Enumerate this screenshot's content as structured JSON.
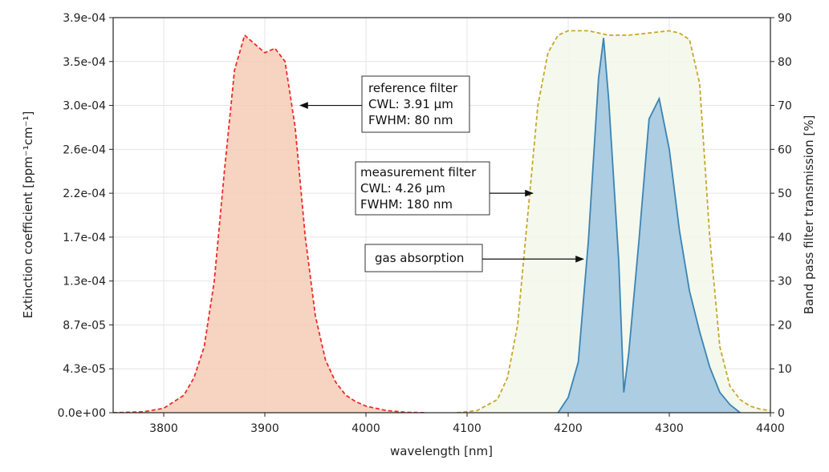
{
  "chart_data": {
    "type": "line",
    "xlabel": "wavelength [nm]",
    "ylabel_left": "Extinction coefficient [ppm⁻¹cm⁻¹]",
    "ylabel_right": "Band pass filter transmission [%]",
    "xlim": [
      3750,
      4400
    ],
    "xticks": [
      3800,
      3900,
      4000,
      4100,
      4200,
      4300,
      4400
    ],
    "ylim_left": [
      0,
      0.00039
    ],
    "yticks_left": [
      "0.0e+00",
      "4.3e-05",
      "8.7e-05",
      "1.3e-04",
      "1.7e-04",
      "2.2e-04",
      "2.6e-04",
      "3.0e-04",
      "3.5e-04",
      "3.9e-04"
    ],
    "ylim_right": [
      0,
      90
    ],
    "yticks_right": [
      0,
      10,
      20,
      30,
      40,
      50,
      60,
      70,
      80,
      90
    ],
    "grid": true,
    "series": [
      {
        "axis": "right",
        "color": "#ee2b2b",
        "fill": "#f5cdb6",
        "style": "dashed",
        "x": [
          3750,
          3780,
          3800,
          3820,
          3830,
          3840,
          3850,
          3860,
          3870,
          3880,
          3890,
          3900,
          3910,
          3920,
          3930,
          3940,
          3950,
          3960,
          3970,
          3980,
          3990,
          4000,
          4020,
          4040,
          4060
        ],
        "y": [
          0,
          0.2,
          1,
          4,
          8,
          15,
          30,
          55,
          78,
          86,
          84,
          82,
          83,
          80,
          65,
          40,
          22,
          12,
          7,
          4,
          2.5,
          1.5,
          0.5,
          0.1,
          0
        ]
      },
      {
        "axis": "right",
        "color": "#c8a82a",
        "fill": "#f2f7ea",
        "style": "dashed",
        "x": [
          4090,
          4110,
          4130,
          4140,
          4150,
          4160,
          4170,
          4180,
          4190,
          4200,
          4220,
          4240,
          4260,
          4280,
          4300,
          4310,
          4320,
          4330,
          4340,
          4350,
          4360,
          4370,
          4380,
          4390,
          4400
        ],
        "y": [
          0,
          0.5,
          3,
          8,
          20,
          45,
          70,
          82,
          86,
          87,
          87,
          86,
          86,
          86.5,
          87,
          86.5,
          85,
          75,
          40,
          15,
          6,
          3,
          1.5,
          0.8,
          0.5
        ]
      },
      {
        "axis": "left",
        "color": "#3b84b4",
        "fill": "#9fc6df",
        "style": "solid",
        "x": [
          4190,
          4200,
          4210,
          4220,
          4230,
          4235,
          4240,
          4250,
          4255,
          4260,
          4270,
          4280,
          4290,
          4300,
          4310,
          4320,
          4330,
          4340,
          4350,
          4360,
          4370
        ],
        "y": [
          0,
          1.5e-05,
          5e-05,
          0.00017,
          0.00033,
          0.00037,
          0.00031,
          0.00015,
          2e-05,
          6e-05,
          0.00017,
          0.00029,
          0.00031,
          0.00026,
          0.00018,
          0.00012,
          8e-05,
          4.5e-05,
          2e-05,
          8e-06,
          0
        ]
      }
    ],
    "annotations": [
      {
        "lines": [
          "reference filter",
          "CWL: 3.91 µm",
          "FWHM: 80 nm"
        ],
        "arrow_to_x": 3935,
        "arrow_to_y_right": 70
      },
      {
        "lines": [
          "measurement filter",
          "CWL: 4.26 µm",
          "FWHM: 180 nm"
        ],
        "arrow_to_x": 4165,
        "arrow_to_y_right": 50
      },
      {
        "lines": [
          "gas absorption"
        ],
        "arrow_to_x": 4215,
        "arrow_to_y_right": 35
      }
    ]
  }
}
